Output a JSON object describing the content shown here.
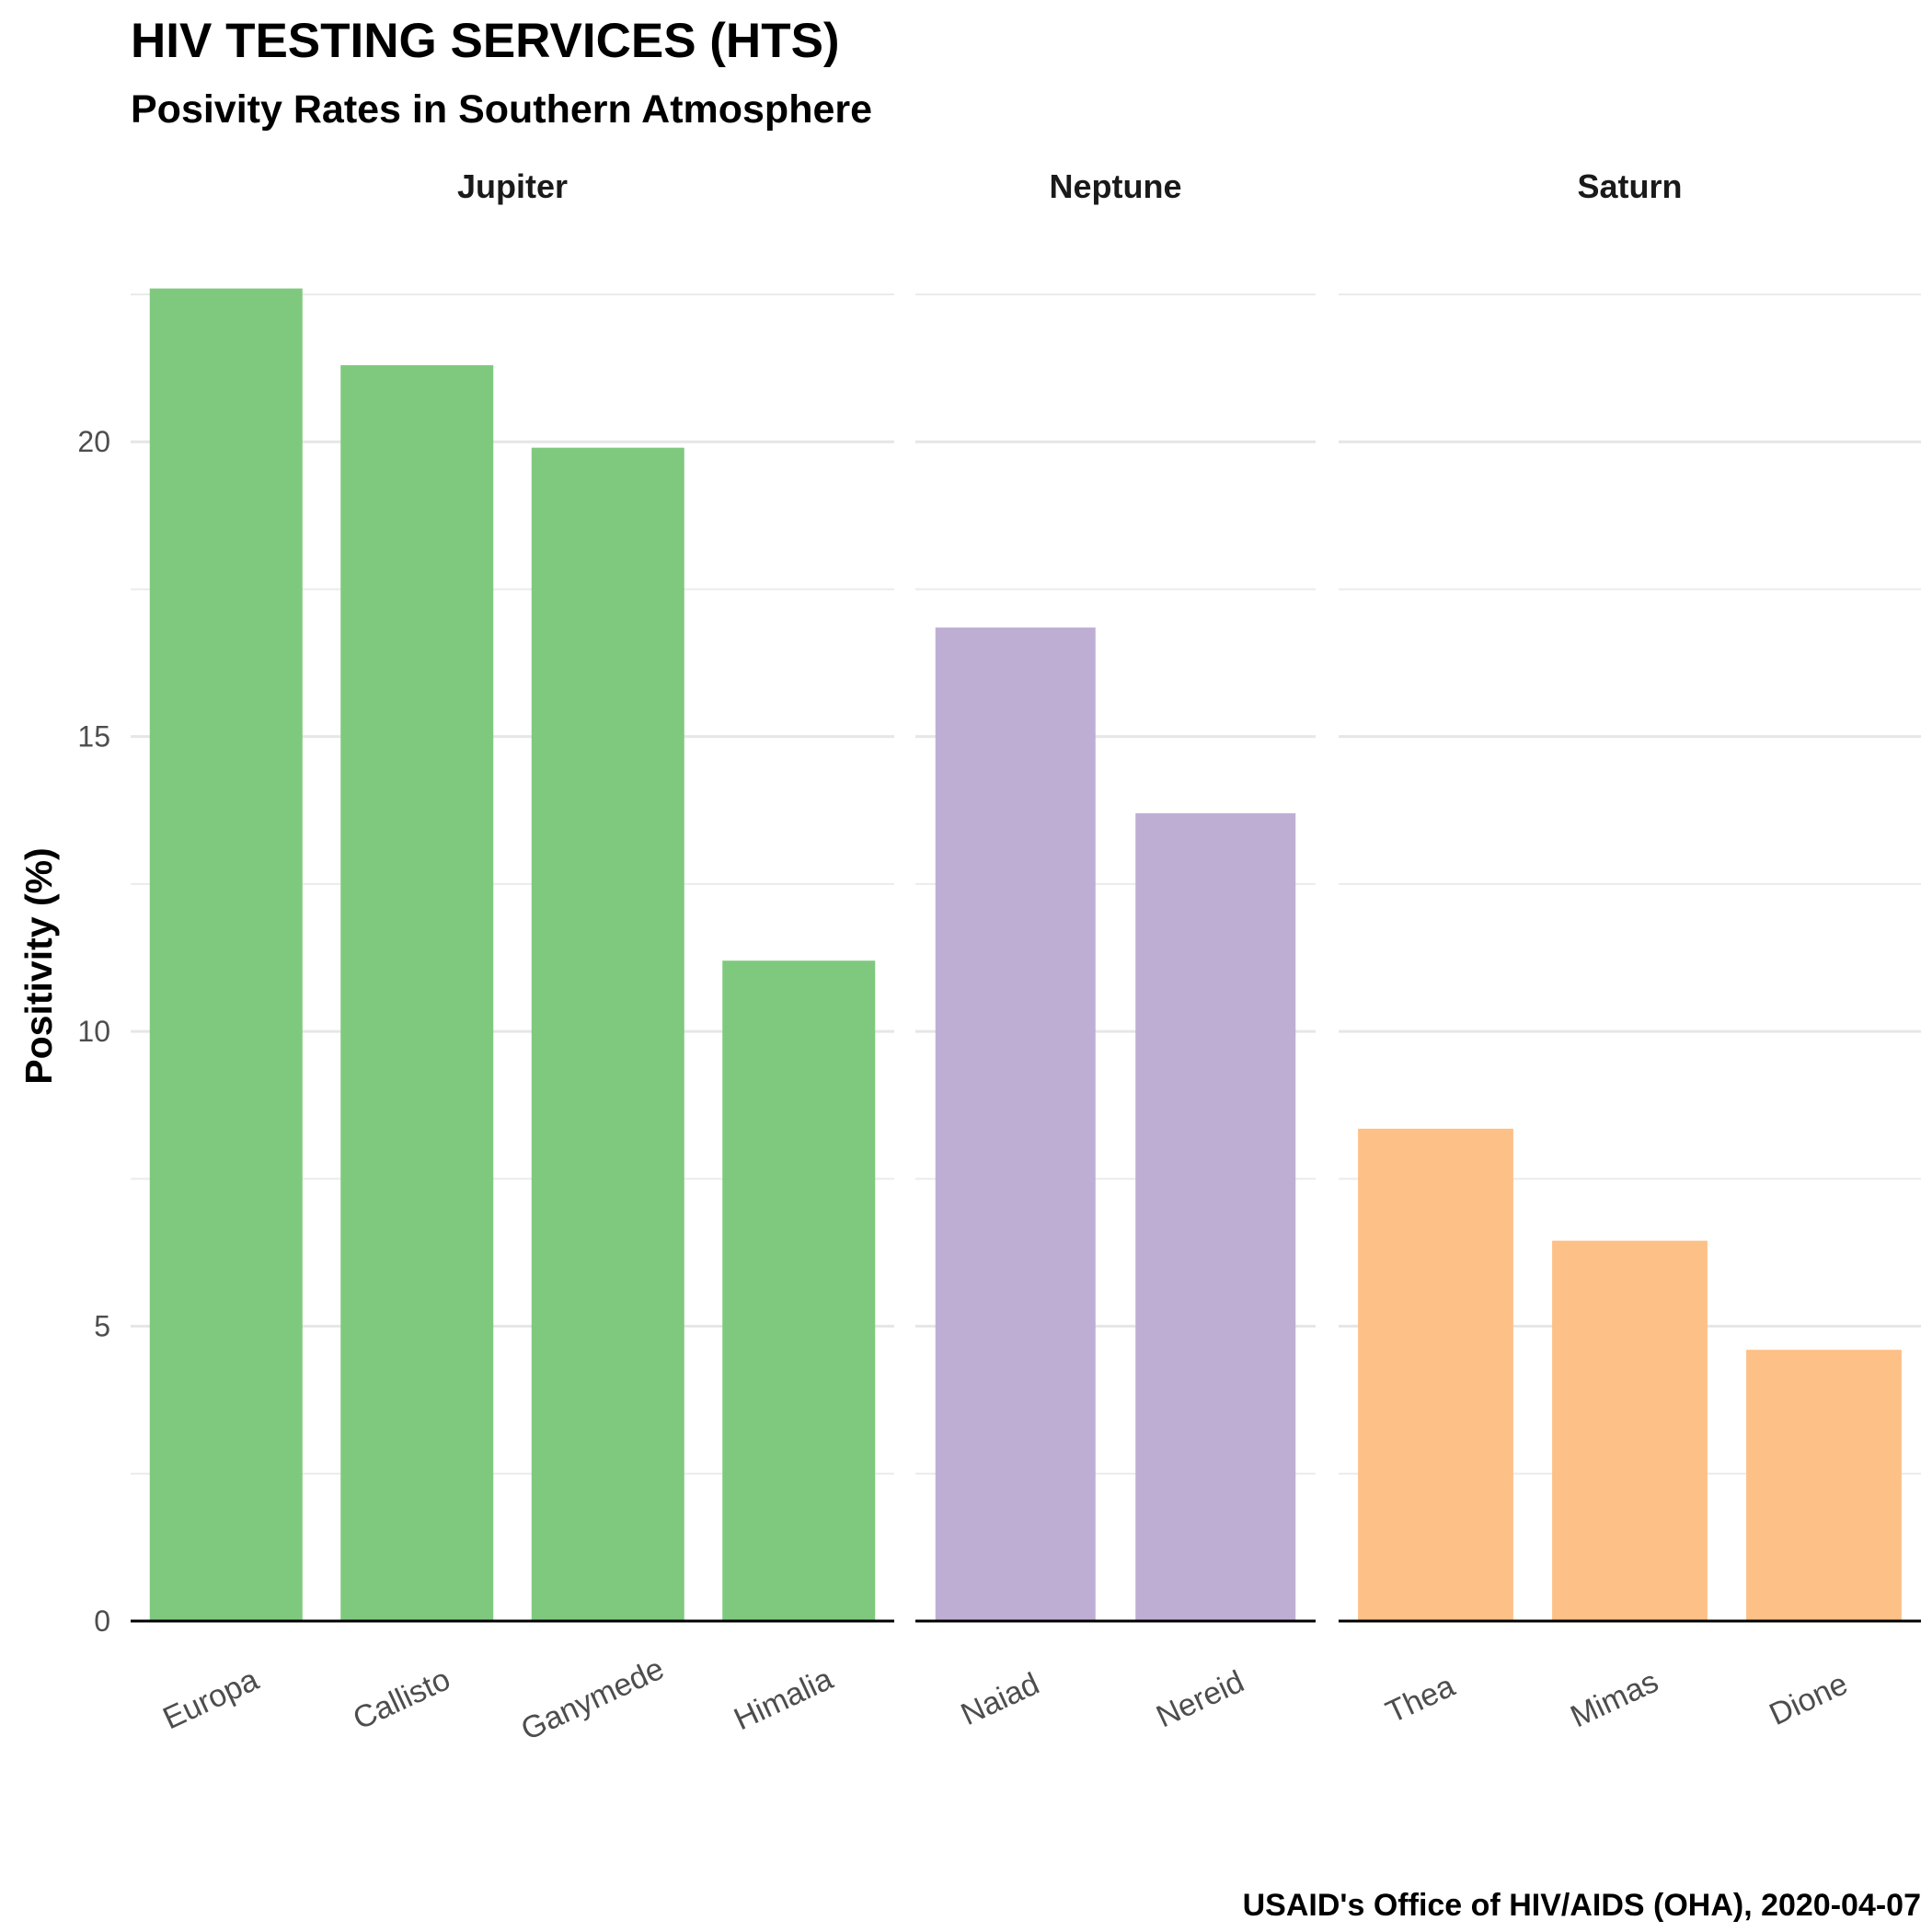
{
  "header": {
    "title": "HIV TESTING SERVICES (HTS)",
    "subtitle": "Posivity Rates in Southern Atmosphere"
  },
  "caption": "USAID's Office of HIV/AIDS (OHA), 2020-04-07",
  "chart_data": {
    "type": "bar",
    "title": "HIV TESTING SERVICES (HTS)",
    "subtitle": "Posivity Rates in Southern Atmosphere",
    "xlabel": "",
    "ylabel": "Positivity (%)",
    "ylim": [
      0,
      22.5
    ],
    "yticks": [
      0,
      5,
      10,
      15,
      20
    ],
    "grid": true,
    "legend": "none",
    "facets": [
      {
        "name": "Jupiter",
        "color": "#7fc97f",
        "categories": [
          "Europa",
          "Callisto",
          "Ganymede",
          "Himalia"
        ],
        "values": [
          22.6,
          21.3,
          19.9,
          11.2
        ]
      },
      {
        "name": "Neptune",
        "color": "#beaed4",
        "categories": [
          "Naiad",
          "Nereid"
        ],
        "values": [
          16.85,
          13.7
        ]
      },
      {
        "name": "Saturn",
        "color": "#fdc086",
        "categories": [
          "Thea",
          "Mimas",
          "Dione"
        ],
        "values": [
          8.35,
          6.45,
          4.6
        ]
      }
    ]
  }
}
